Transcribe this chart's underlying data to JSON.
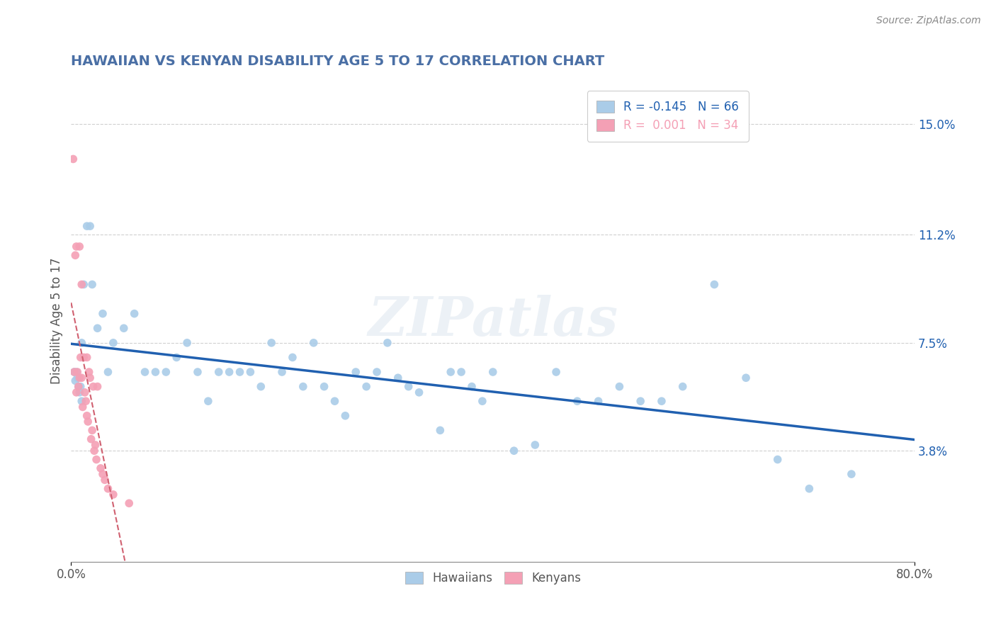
{
  "title": "HAWAIIAN VS KENYAN DISABILITY AGE 5 TO 17 CORRELATION CHART",
  "source": "Source: ZipAtlas.com",
  "ylabel": "Disability Age 5 to 17",
  "xlim": [
    0,
    0.8
  ],
  "ylim": [
    0.0,
    0.165
  ],
  "xtick_labels": [
    "0.0%",
    "80.0%"
  ],
  "xtick_vals": [
    0.0,
    0.8
  ],
  "ytick_labels_right": [
    "3.8%",
    "7.5%",
    "11.2%",
    "15.0%"
  ],
  "ytick_vals_right": [
    0.038,
    0.075,
    0.112,
    0.15
  ],
  "grid_color": "#d0d0d0",
  "background_color": "#ffffff",
  "hawaiian_color": "#aacce8",
  "kenyan_color": "#f4a0b5",
  "hawaiian_line_color": "#2060b0",
  "kenyan_line_color": "#d06070",
  "legend_R_hawaiian": "-0.145",
  "legend_N_hawaiian": "66",
  "legend_R_kenyan": "0.001",
  "legend_N_kenyan": "34",
  "watermark": "ZIPatlas",
  "title_color": "#4a6fa5",
  "hawaiian_x": [
    0.003,
    0.004,
    0.005,
    0.006,
    0.007,
    0.008,
    0.009,
    0.01,
    0.01,
    0.012,
    0.015,
    0.018,
    0.02,
    0.025,
    0.03,
    0.035,
    0.04,
    0.05,
    0.06,
    0.07,
    0.08,
    0.09,
    0.1,
    0.11,
    0.12,
    0.13,
    0.14,
    0.15,
    0.16,
    0.17,
    0.18,
    0.19,
    0.2,
    0.21,
    0.22,
    0.23,
    0.24,
    0.25,
    0.26,
    0.27,
    0.28,
    0.29,
    0.3,
    0.31,
    0.32,
    0.33,
    0.35,
    0.36,
    0.37,
    0.38,
    0.39,
    0.4,
    0.42,
    0.44,
    0.46,
    0.48,
    0.5,
    0.52,
    0.54,
    0.56,
    0.58,
    0.61,
    0.64,
    0.67,
    0.7,
    0.74
  ],
  "hawaiian_y": [
    0.065,
    0.062,
    0.065,
    0.063,
    0.06,
    0.058,
    0.06,
    0.075,
    0.055,
    0.095,
    0.115,
    0.115,
    0.095,
    0.08,
    0.085,
    0.065,
    0.075,
    0.08,
    0.085,
    0.065,
    0.065,
    0.065,
    0.07,
    0.075,
    0.065,
    0.055,
    0.065,
    0.065,
    0.065,
    0.065,
    0.06,
    0.075,
    0.065,
    0.07,
    0.06,
    0.075,
    0.06,
    0.055,
    0.05,
    0.065,
    0.06,
    0.065,
    0.075,
    0.063,
    0.06,
    0.058,
    0.045,
    0.065,
    0.065,
    0.06,
    0.055,
    0.065,
    0.038,
    0.04,
    0.065,
    0.055,
    0.055,
    0.06,
    0.055,
    0.055,
    0.06,
    0.095,
    0.063,
    0.035,
    0.025,
    0.03
  ],
  "kenyan_x": [
    0.002,
    0.003,
    0.004,
    0.005,
    0.005,
    0.006,
    0.007,
    0.008,
    0.008,
    0.009,
    0.01,
    0.01,
    0.011,
    0.012,
    0.013,
    0.014,
    0.015,
    0.015,
    0.016,
    0.017,
    0.018,
    0.019,
    0.02,
    0.021,
    0.022,
    0.023,
    0.024,
    0.025,
    0.028,
    0.03,
    0.032,
    0.035,
    0.04,
    0.055
  ],
  "kenyan_y": [
    0.138,
    0.065,
    0.105,
    0.108,
    0.058,
    0.065,
    0.06,
    0.108,
    0.063,
    0.07,
    0.095,
    0.063,
    0.053,
    0.07,
    0.058,
    0.055,
    0.07,
    0.05,
    0.048,
    0.065,
    0.063,
    0.042,
    0.045,
    0.06,
    0.038,
    0.04,
    0.035,
    0.06,
    0.032,
    0.03,
    0.028,
    0.025,
    0.023,
    0.02
  ]
}
